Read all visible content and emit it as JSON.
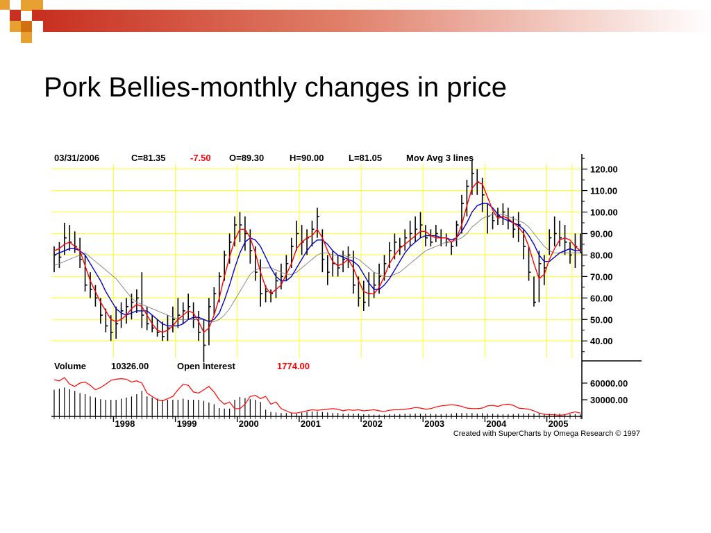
{
  "slide": {
    "title": "Pork Bellies-monthly changes in price"
  },
  "colors": {
    "decor_orange": "#e8a030",
    "decor_red": "#c83020",
    "decor_dark_orange": "#d07010",
    "gridline": "#ffff40",
    "price_bar": "#000000",
    "ma_short": "#ff0000",
    "ma_medium": "#0000cc",
    "ma_long": "#808080",
    "change_negative": "#ff0000",
    "open_interest": "#ff0000"
  },
  "chart_data": {
    "type": "bar",
    "subtype": "monthly OHLC price bars with 3 moving averages, volume and open interest panel",
    "info_line": {
      "date": "03/31/2006",
      "close": "C=81.35",
      "change": "-7.50",
      "open": "O=89.30",
      "high": "H=90.00",
      "low": "L=81.05",
      "indicator": "Mov Avg 3 lines"
    },
    "price_axis": {
      "ylim": [
        32,
        127
      ],
      "ticks": [
        {
          "value": 120,
          "label": "120.00"
        },
        {
          "value": 110,
          "label": "110.00"
        },
        {
          "value": 100,
          "label": "100.00"
        },
        {
          "value": 90,
          "label": "90.00"
        },
        {
          "value": 80,
          "label": "80.00"
        },
        {
          "value": 70,
          "label": "70.00"
        },
        {
          "value": 60,
          "label": "60.00"
        },
        {
          "value": 50,
          "label": "50.00"
        },
        {
          "value": 40,
          "label": "40.00"
        }
      ],
      "grid": true
    },
    "x_axis": {
      "start_month": "1997-01",
      "end_month": "2006-03",
      "year_labels": [
        {
          "year": 1998,
          "label": "1998"
        },
        {
          "year": 1999,
          "label": "1999"
        },
        {
          "year": 2000,
          "label": "2000"
        },
        {
          "year": 2001,
          "label": "2001"
        },
        {
          "year": 2002,
          "label": "2002"
        },
        {
          "year": 2003,
          "label": "2003"
        },
        {
          "year": 2004,
          "label": "2004"
        },
        {
          "year": 2005,
          "label": "2005"
        }
      ]
    },
    "bars_monthly_high_low_close": [
      [
        84,
        72,
        80
      ],
      [
        86,
        74,
        79
      ],
      [
        95,
        80,
        88
      ],
      [
        94,
        82,
        86
      ],
      [
        91,
        81,
        84
      ],
      [
        88,
        74,
        78
      ],
      [
        80,
        63,
        66
      ],
      [
        72,
        60,
        64
      ],
      [
        66,
        56,
        60
      ],
      [
        60,
        48,
        52
      ],
      [
        55,
        44,
        47
      ],
      [
        52,
        40,
        44
      ],
      [
        56,
        41,
        48
      ],
      [
        58,
        46,
        54
      ],
      [
        60,
        48,
        56
      ],
      [
        62,
        50,
        58
      ],
      [
        64,
        53,
        60
      ],
      [
        72,
        46,
        52
      ],
      [
        56,
        45,
        48
      ],
      [
        52,
        44,
        46
      ],
      [
        50,
        42,
        44
      ],
      [
        49,
        40,
        42
      ],
      [
        52,
        40,
        46
      ],
      [
        56,
        44,
        50
      ],
      [
        60,
        46,
        52
      ],
      [
        58,
        48,
        54
      ],
      [
        62,
        50,
        56
      ],
      [
        58,
        46,
        50
      ],
      [
        54,
        40,
        44
      ],
      [
        50,
        30,
        38
      ],
      [
        60,
        38,
        56
      ],
      [
        65,
        52,
        62
      ],
      [
        72,
        58,
        70
      ],
      [
        82,
        68,
        80
      ],
      [
        90,
        76,
        86
      ],
      [
        98,
        84,
        94
      ],
      [
        100,
        86,
        94
      ],
      [
        98,
        82,
        90
      ],
      [
        92,
        76,
        82
      ],
      [
        84,
        68,
        72
      ],
      [
        78,
        56,
        62
      ],
      [
        66,
        58,
        63
      ],
      [
        64,
        58,
        62
      ],
      [
        72,
        60,
        68
      ],
      [
        76,
        64,
        70
      ],
      [
        80,
        68,
        76
      ],
      [
        88,
        74,
        84
      ],
      [
        96,
        82,
        90
      ],
      [
        94,
        80,
        86
      ],
      [
        92,
        80,
        88
      ],
      [
        96,
        84,
        92
      ],
      [
        102,
        88,
        98
      ],
      [
        92,
        72,
        78
      ],
      [
        80,
        66,
        72
      ],
      [
        82,
        70,
        76
      ],
      [
        80,
        70,
        74
      ],
      [
        82,
        72,
        78
      ],
      [
        84,
        74,
        80
      ],
      [
        82,
        62,
        66
      ],
      [
        70,
        56,
        60
      ],
      [
        68,
        54,
        58
      ],
      [
        72,
        56,
        62
      ],
      [
        72,
        60,
        66
      ],
      [
        76,
        62,
        70
      ],
      [
        80,
        68,
        76
      ],
      [
        86,
        74,
        82
      ],
      [
        90,
        78,
        86
      ],
      [
        88,
        80,
        84
      ],
      [
        92,
        82,
        88
      ],
      [
        96,
        84,
        90
      ],
      [
        98,
        86,
        92
      ],
      [
        100,
        88,
        94
      ],
      [
        94,
        84,
        88
      ],
      [
        92,
        84,
        86
      ],
      [
        94,
        86,
        90
      ],
      [
        92,
        84,
        88
      ],
      [
        90,
        84,
        86
      ],
      [
        86,
        80,
        84
      ],
      [
        96,
        84,
        94
      ],
      [
        108,
        90,
        104
      ],
      [
        115,
        98,
        112
      ],
      [
        124,
        108,
        118
      ],
      [
        120,
        108,
        114
      ],
      [
        116,
        100,
        108
      ],
      [
        104,
        90,
        98
      ],
      [
        100,
        92,
        96
      ],
      [
        102,
        94,
        98
      ],
      [
        104,
        94,
        100
      ],
      [
        102,
        92,
        96
      ],
      [
        98,
        88,
        92
      ],
      [
        100,
        86,
        94
      ],
      [
        92,
        78,
        84
      ],
      [
        84,
        68,
        72
      ],
      [
        70,
        56,
        58
      ],
      [
        82,
        58,
        76
      ],
      [
        80,
        66,
        74
      ],
      [
        92,
        80,
        88
      ],
      [
        98,
        84,
        90
      ],
      [
        96,
        84,
        88
      ],
      [
        94,
        80,
        86
      ],
      [
        86,
        76,
        80
      ],
      [
        90,
        74,
        84
      ],
      [
        90,
        81,
        81
      ]
    ],
    "series": [
      {
        "values": [
          82,
          83,
          85,
          86,
          84,
          82,
          75,
          68,
          63,
          58,
          54,
          50,
          49,
          50,
          52,
          55,
          57,
          56,
          52,
          48,
          45,
          44,
          45,
          47,
          50,
          52,
          54,
          53,
          49,
          44,
          46,
          52,
          60,
          70,
          79,
          87,
          92,
          92,
          88,
          81,
          72,
          65,
          62,
          64,
          66,
          71,
          76,
          83,
          86,
          88,
          89,
          92,
          88,
          82,
          77,
          75,
          76,
          78,
          74,
          68,
          63,
          62,
          62,
          65,
          70,
          76,
          80,
          83,
          85,
          87,
          89,
          91,
          91,
          89,
          88,
          88,
          88,
          86,
          88,
          94,
          103,
          111,
          114,
          113,
          107,
          101,
          97,
          98,
          97,
          95,
          93,
          90,
          84,
          76,
          69,
          71,
          78,
          83,
          87,
          88,
          87,
          84,
          82
        ]
      },
      {
        "values": [
          80,
          81,
          82,
          83,
          83,
          82,
          80,
          76,
          72,
          68,
          63,
          59,
          55,
          53,
          52,
          53,
          54,
          54,
          54,
          52,
          50,
          48,
          47,
          47,
          47,
          48,
          50,
          51,
          51,
          50,
          49,
          50,
          53,
          59,
          66,
          74,
          81,
          86,
          88,
          87,
          84,
          79,
          74,
          70,
          68,
          68,
          70,
          74,
          78,
          82,
          85,
          87,
          87,
          85,
          82,
          80,
          79,
          78,
          77,
          75,
          71,
          67,
          64,
          64,
          66,
          69,
          73,
          77,
          81,
          84,
          86,
          88,
          89,
          89,
          89,
          88,
          88,
          87,
          88,
          91,
          95,
          100,
          103,
          104,
          104,
          102,
          99,
          97,
          96,
          95,
          94,
          92,
          89,
          85,
          80,
          77,
          77,
          79,
          81,
          82,
          83,
          82,
          82
        ]
      },
      {
        "values": [
          75,
          76,
          77,
          78,
          79,
          80,
          81,
          79,
          77,
          75,
          73,
          71,
          69,
          66,
          63,
          60,
          58,
          57,
          56,
          55,
          54,
          53,
          52,
          51,
          50,
          50,
          50,
          50,
          50,
          50,
          49,
          49,
          50,
          52,
          55,
          59,
          63,
          67,
          71,
          73,
          74,
          74,
          74,
          73,
          72,
          71,
          71,
          72,
          74,
          76,
          78,
          80,
          81,
          81,
          80,
          80,
          80,
          79,
          79,
          78,
          76,
          74,
          72,
          71,
          70,
          70,
          71,
          72,
          74,
          76,
          78,
          80,
          82,
          83,
          84,
          85,
          86,
          86,
          87,
          88,
          90,
          93,
          95,
          97,
          98,
          99,
          99,
          99,
          98,
          97,
          96,
          95,
          93,
          90,
          87,
          84,
          82,
          81,
          81,
          81,
          81,
          81,
          81
        ]
      }
    ],
    "volume_panel": {
      "volume_label": "Volume",
      "volume_value": "10326.00",
      "oi_label": "Open Interest",
      "oi_value": "1774.00",
      "ylim": [
        0,
        75000
      ],
      "ticks": [
        {
          "value": 60000,
          "label": "60000.00"
        },
        {
          "value": 30000,
          "label": "30000.00"
        }
      ],
      "volume_values": [
        48000,
        50000,
        52000,
        49000,
        46000,
        42000,
        40000,
        36000,
        34000,
        31000,
        30000,
        30000,
        30000,
        32000,
        34000,
        36000,
        40000,
        46000,
        36000,
        34000,
        32000,
        30000,
        30000,
        30000,
        30000,
        32000,
        30000,
        30000,
        30000,
        28000,
        25000,
        22000,
        15000,
        14000,
        14000,
        30000,
        35000,
        33000,
        31000,
        30000,
        26000,
        12000,
        8000,
        7000,
        6000,
        6000,
        6000,
        5000,
        7000,
        8000,
        9000,
        9000,
        8000,
        7000,
        6000,
        6000,
        5000,
        5000,
        5000,
        5000,
        4000,
        4000,
        3000,
        3000,
        3000,
        4000,
        4000,
        4000,
        5000,
        5000,
        5000,
        5000,
        5000,
        5000,
        4000,
        4000,
        5000,
        5000,
        6000,
        6000,
        6000,
        6000,
        5000,
        6000,
        5000,
        5000,
        4000,
        4000,
        4000,
        4000,
        5000,
        5000,
        5000,
        5000,
        5000,
        5000,
        5000,
        5000,
        5000,
        4000,
        4000,
        4000,
        4000
      ],
      "open_interest_values": [
        66000,
        64000,
        70000,
        58000,
        54000,
        60000,
        62000,
        56000,
        48000,
        52000,
        58000,
        65000,
        67000,
        68000,
        67000,
        62000,
        64000,
        60000,
        42000,
        36000,
        30000,
        28000,
        32000,
        36000,
        48000,
        58000,
        56000,
        44000,
        42000,
        48000,
        54000,
        44000,
        30000,
        22000,
        26000,
        14000,
        14000,
        22000,
        36000,
        38000,
        32000,
        36000,
        22000,
        26000,
        14000,
        10000,
        6000,
        6000,
        8000,
        10000,
        12000,
        11000,
        12000,
        13000,
        14000,
        13000,
        10000,
        12000,
        11000,
        12000,
        10000,
        11000,
        12000,
        10000,
        9000,
        11000,
        12000,
        12000,
        13000,
        14000,
        16000,
        15000,
        13000,
        14000,
        17000,
        19000,
        20000,
        21000,
        20000,
        18000,
        15000,
        14000,
        14000,
        15000,
        19000,
        20000,
        18000,
        21000,
        22000,
        20000,
        15000,
        14000,
        13000,
        10000,
        6000,
        4000,
        3000,
        3000,
        2000,
        3000,
        6000,
        8000,
        6000
      ]
    },
    "credit": "Created with SuperCharts by Omega Research © 1997"
  }
}
